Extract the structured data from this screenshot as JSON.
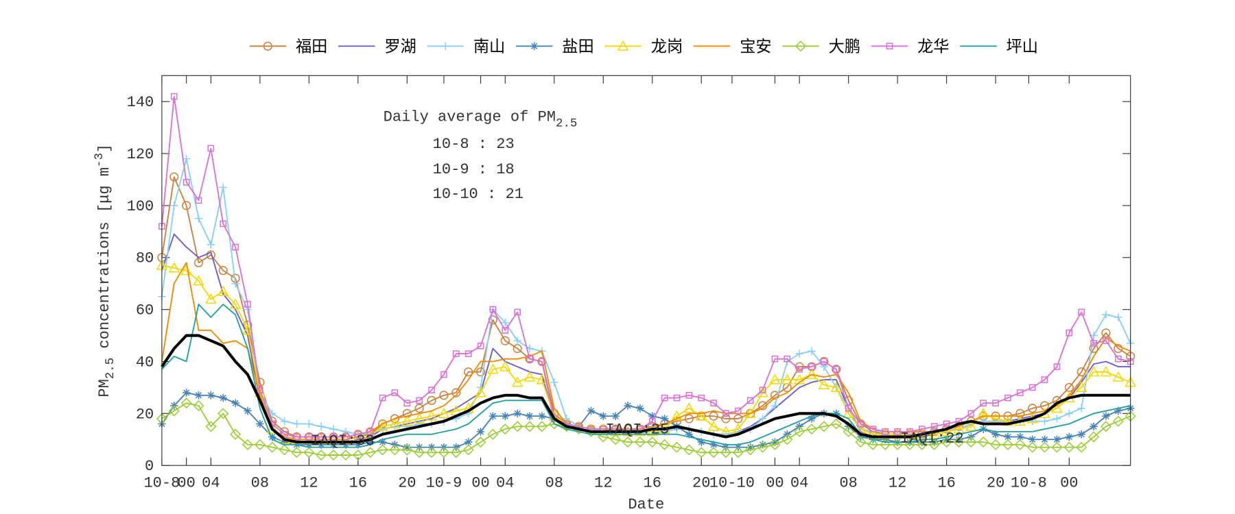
{
  "chart_data": {
    "type": "line",
    "xlabel": "Date",
    "ylabel": {
      "main": "PM",
      "sub": "2.5",
      "rest": " concentrations [μg m",
      "sup": "-3",
      "end": "]"
    },
    "xlim": [
      0,
      79
    ],
    "ylim": [
      0,
      150
    ],
    "yticks": [
      0,
      20,
      40,
      60,
      80,
      100,
      120,
      140
    ],
    "xticks": [
      {
        "value": 0,
        "label": "10-8"
      },
      {
        "value": 2,
        "label": "00"
      },
      {
        "value": 4,
        "label": "04"
      },
      {
        "value": 8,
        "label": "08"
      },
      {
        "value": 12,
        "label": "12"
      },
      {
        "value": 16,
        "label": "16"
      },
      {
        "value": 20,
        "label": "20"
      },
      {
        "value": 23,
        "label": "10-9"
      },
      {
        "value": 26,
        "label": "00"
      },
      {
        "value": 28,
        "label": "04"
      },
      {
        "value": 32,
        "label": "08"
      },
      {
        "value": 36,
        "label": "12"
      },
      {
        "value": 40,
        "label": "16"
      },
      {
        "value": 44,
        "label": "20"
      },
      {
        "value": 46.5,
        "label": "10-10"
      },
      {
        "value": 50,
        "label": "00"
      },
      {
        "value": 52,
        "label": "04"
      },
      {
        "value": 56,
        "label": "08"
      },
      {
        "value": 60,
        "label": "12"
      },
      {
        "value": 64,
        "label": "16"
      },
      {
        "value": 68,
        "label": "20"
      },
      {
        "value": 70.7,
        "label": "10-8"
      },
      {
        "value": 74,
        "label": "00"
      }
    ],
    "x": [
      0,
      1,
      2,
      3,
      4,
      5,
      6,
      7,
      8,
      9,
      10,
      11,
      12,
      13,
      14,
      15,
      16,
      17,
      18,
      19,
      20,
      21,
      22,
      23,
      24,
      25,
      26,
      27,
      28,
      29,
      30,
      31,
      32,
      33,
      34,
      35,
      36,
      37,
      38,
      39,
      40,
      41,
      42,
      43,
      44,
      45,
      46,
      47,
      48,
      49,
      50,
      51,
      52,
      53,
      54,
      55,
      56,
      57,
      58,
      59,
      60,
      61,
      62,
      63,
      64,
      65,
      66,
      67,
      68,
      69,
      70,
      71,
      72,
      73,
      74,
      75,
      76,
      77,
      78,
      79
    ],
    "annotation": {
      "title": "Daily average of PM",
      "sub": "2.5",
      "lines": [
        "10-8 : 23",
        "10-9 : 18",
        "10-10 : 21"
      ]
    },
    "iaqi_labels": [
      "IAQI:33",
      "IAQI:25",
      "IAQI:22"
    ],
    "legend": "top",
    "series": [
      {
        "name": "福田",
        "color": "#cd7f3c",
        "marker": "circle",
        "values": [
          80,
          111,
          100,
          78,
          81,
          75,
          72,
          54,
          32,
          17,
          13,
          11,
          11,
          11,
          11,
          11,
          12,
          13,
          16,
          18,
          20,
          22,
          25,
          27,
          28,
          36,
          36,
          56,
          48,
          45,
          41,
          40,
          20,
          16,
          15,
          14,
          14,
          14,
          14,
          14,
          15,
          16,
          17,
          18,
          19,
          19,
          18,
          18,
          20,
          23,
          27,
          30,
          38,
          38,
          40,
          37,
          25,
          16,
          13,
          12,
          12,
          12,
          12,
          13,
          14,
          15,
          17,
          19,
          19,
          19,
          20,
          22,
          23,
          25,
          30,
          36,
          45,
          51,
          45,
          42
        ]
      },
      {
        "name": "罗湖",
        "color": "#6a5acd",
        "marker": "none",
        "values": [
          75,
          89,
          84,
          80,
          82,
          66,
          60,
          50,
          25,
          14,
          10,
          9,
          9,
          9,
          9,
          9,
          10,
          11,
          14,
          15,
          16,
          17,
          18,
          20,
          22,
          25,
          28,
          45,
          40,
          38,
          36,
          35,
          18,
          15,
          14,
          13,
          13,
          13,
          13,
          13,
          13,
          13,
          14,
          14,
          13,
          12,
          12,
          13,
          15,
          18,
          22,
          26,
          30,
          32,
          33,
          33,
          22,
          13,
          11,
          11,
          11,
          11,
          11,
          12,
          13,
          14,
          16,
          17,
          17,
          17,
          18,
          19,
          20,
          22,
          26,
          32,
          39,
          40,
          38,
          38
        ]
      },
      {
        "name": "南山",
        "color": "#87cefa",
        "marker": "plus",
        "values": [
          65,
          100,
          118,
          95,
          85,
          107,
          70,
          60,
          28,
          20,
          17,
          16,
          16,
          15,
          14,
          13,
          12,
          12,
          14,
          15,
          15,
          16,
          16,
          17,
          18,
          20,
          30,
          60,
          55,
          48,
          45,
          44,
          32,
          18,
          15,
          14,
          13,
          13,
          13,
          13,
          13,
          13,
          14,
          14,
          13,
          12,
          12,
          13,
          14,
          18,
          23,
          40,
          43,
          44,
          38,
          30,
          22,
          14,
          13,
          13,
          13,
          13,
          13,
          13,
          14,
          14,
          16,
          17,
          17,
          17,
          17,
          17,
          17,
          18,
          20,
          22,
          50,
          58,
          57,
          47
        ]
      },
      {
        "name": "盐田",
        "color": "#4682b4",
        "marker": "star",
        "values": [
          16,
          23,
          28,
          27,
          27,
          26,
          24,
          21,
          16,
          11,
          9,
          8,
          8,
          8,
          8,
          8,
          8,
          9,
          9,
          8,
          7,
          7,
          7,
          7,
          7,
          9,
          13,
          19,
          19,
          20,
          19,
          19,
          18,
          15,
          15,
          21,
          19,
          19,
          23,
          22,
          19,
          18,
          15,
          12,
          9,
          8,
          7,
          7,
          7,
          8,
          9,
          12,
          15,
          18,
          20,
          20,
          15,
          11,
          10,
          10,
          9,
          9,
          9,
          9,
          10,
          10,
          11,
          14,
          12,
          11,
          11,
          10,
          10,
          10,
          11,
          12,
          15,
          19,
          21,
          22
        ]
      },
      {
        "name": "龙岗",
        "color": "#f5d800",
        "marker": "triangle",
        "values": [
          77,
          76,
          75,
          71,
          64,
          67,
          62,
          52,
          28,
          14,
          10,
          10,
          10,
          10,
          10,
          10,
          11,
          12,
          15,
          16,
          17,
          18,
          19,
          20,
          21,
          22,
          28,
          37,
          38,
          32,
          34,
          33,
          19,
          16,
          15,
          14,
          14,
          13,
          13,
          13,
          13,
          14,
          19,
          22,
          19,
          15,
          13,
          14,
          20,
          28,
          33,
          33,
          33,
          35,
          31,
          30,
          20,
          14,
          12,
          12,
          12,
          12,
          12,
          12,
          13,
          14,
          15,
          20,
          18,
          17,
          17,
          18,
          20,
          22,
          26,
          30,
          36,
          36,
          34,
          32
        ]
      },
      {
        "name": "宝安",
        "color": "#f08a00",
        "marker": "none",
        "values": [
          40,
          70,
          78,
          52,
          52,
          47,
          48,
          45,
          27,
          14,
          11,
          10,
          10,
          10,
          10,
          10,
          11,
          12,
          16,
          18,
          19,
          20,
          21,
          23,
          27,
          33,
          40,
          40,
          41,
          41,
          42,
          44,
          22,
          16,
          15,
          14,
          14,
          13,
          13,
          13,
          14,
          16,
          18,
          20,
          20,
          21,
          20,
          20,
          20,
          22,
          26,
          28,
          32,
          35,
          34,
          35,
          28,
          17,
          14,
          13,
          13,
          13,
          13,
          13,
          14,
          15,
          17,
          19,
          19,
          19,
          19,
          20,
          21,
          23,
          27,
          33,
          42,
          49,
          46,
          44
        ]
      },
      {
        "name": "大鹏",
        "color": "#9acd32",
        "marker": "diamond",
        "values": [
          18,
          21,
          24,
          23,
          15,
          20,
          12,
          8,
          8,
          7,
          6,
          5,
          5,
          4,
          4,
          4,
          4,
          5,
          6,
          6,
          6,
          5,
          5,
          5,
          5,
          6,
          9,
          12,
          14,
          15,
          15,
          15,
          16,
          15,
          14,
          13,
          11,
          10,
          9,
          9,
          9,
          8,
          7,
          6,
          5,
          5,
          5,
          5,
          6,
          7,
          8,
          10,
          13,
          14,
          15,
          16,
          13,
          9,
          8,
          8,
          8,
          8,
          8,
          8,
          9,
          9,
          9,
          9,
          8,
          8,
          8,
          7,
          7,
          7,
          7,
          7,
          11,
          15,
          17,
          19
        ]
      },
      {
        "name": "龙华",
        "color": "#da70d6",
        "marker": "square",
        "values": [
          92,
          142,
          109,
          102,
          122,
          93,
          84,
          62,
          29,
          16,
          12,
          11,
          11,
          11,
          11,
          11,
          12,
          13,
          26,
          28,
          24,
          25,
          29,
          35,
          43,
          43,
          46,
          60,
          52,
          59,
          41,
          40,
          18,
          16,
          15,
          14,
          14,
          14,
          13,
          14,
          17,
          26,
          26,
          27,
          26,
          24,
          20,
          21,
          25,
          29,
          41,
          41,
          37,
          38,
          40,
          37,
          22,
          16,
          14,
          13,
          13,
          13,
          14,
          15,
          16,
          17,
          20,
          24,
          24,
          26,
          28,
          30,
          33,
          38,
          51,
          59,
          47,
          48,
          41,
          40
        ]
      },
      {
        "name": "坪山",
        "color": "#20a0a0",
        "marker": "none",
        "values": [
          37,
          42,
          40,
          62,
          57,
          62,
          58,
          45,
          22,
          10,
          8,
          8,
          7,
          7,
          7,
          7,
          7,
          8,
          10,
          11,
          12,
          12,
          12,
          13,
          14,
          16,
          20,
          24,
          25,
          25,
          25,
          25,
          16,
          14,
          13,
          12,
          12,
          12,
          12,
          12,
          12,
          12,
          12,
          11,
          10,
          9,
          8,
          8,
          9,
          11,
          13,
          15,
          17,
          19,
          20,
          20,
          18,
          12,
          10,
          9,
          9,
          9,
          10,
          10,
          11,
          12,
          13,
          14,
          13,
          13,
          13,
          13,
          14,
          15,
          16,
          18,
          20,
          21,
          22,
          23
        ]
      },
      {
        "color": "#000000",
        "marker": "none",
        "values": [
          38,
          45,
          50,
          50,
          48,
          46,
          40,
          35,
          25,
          14,
          10,
          9,
          9,
          9,
          9,
          9,
          9,
          10,
          12,
          13,
          14,
          15,
          16,
          17,
          19,
          21,
          24,
          26,
          27,
          27,
          26,
          26,
          18,
          15,
          14,
          13,
          13,
          13,
          13,
          13,
          14,
          14,
          15,
          14,
          13,
          12,
          11,
          12,
          14,
          16,
          18,
          19,
          20,
          20,
          20,
          19,
          16,
          12,
          11,
          11,
          11,
          11,
          12,
          13,
          14,
          16,
          17,
          16,
          16,
          16,
          17,
          18,
          20,
          24,
          26,
          27,
          27,
          27,
          27,
          27
        ]
      }
    ]
  }
}
